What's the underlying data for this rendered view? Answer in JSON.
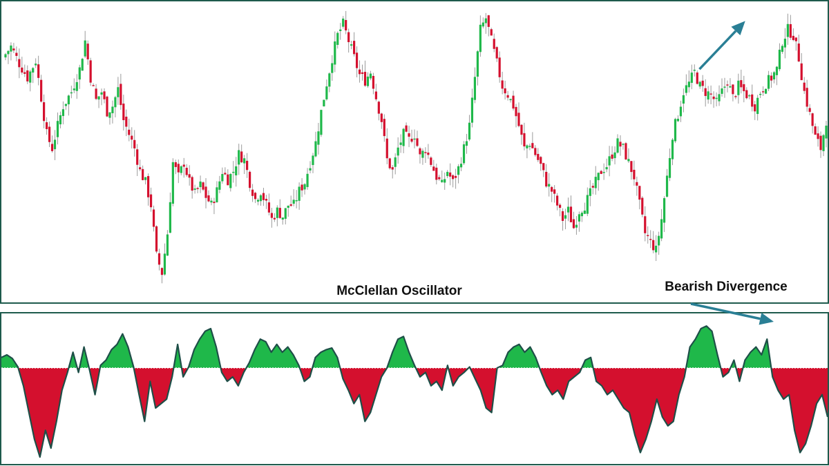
{
  "colors": {
    "bull": "#1fb84a",
    "bear": "#d4102e",
    "frame": "#1e5a4c",
    "arrow": "#2a7f95",
    "oscillator_line": "#1e4f48",
    "wick": "#9a9a9a"
  },
  "chart_data": [
    {
      "type": "candlestick",
      "title": "",
      "xlabel": "",
      "ylabel": "",
      "grid": false,
      "ylim": [
        0,
        100
      ],
      "annotation": {
        "kind": "arrow",
        "direction": "up-right",
        "from": [
          245,
          78
        ],
        "to": [
          272,
          96
        ]
      },
      "close_path": [
        [
          0,
          82
        ],
        [
          3,
          86
        ],
        [
          6,
          80
        ],
        [
          9,
          75
        ],
        [
          12,
          81
        ],
        [
          14,
          68
        ],
        [
          16,
          55
        ],
        [
          18,
          50
        ],
        [
          20,
          58
        ],
        [
          22,
          65
        ],
        [
          25,
          70
        ],
        [
          28,
          78
        ],
        [
          30,
          88
        ],
        [
          32,
          75
        ],
        [
          34,
          67
        ],
        [
          36,
          70
        ],
        [
          38,
          63
        ],
        [
          40,
          65
        ],
        [
          42,
          71
        ],
        [
          44,
          60
        ],
        [
          46,
          55
        ],
        [
          48,
          50
        ],
        [
          50,
          42
        ],
        [
          52,
          38
        ],
        [
          54,
          30
        ],
        [
          56,
          12
        ],
        [
          58,
          6
        ],
        [
          60,
          20
        ],
        [
          62,
          45
        ],
        [
          64,
          40
        ],
        [
          66,
          45
        ],
        [
          68,
          38
        ],
        [
          70,
          34
        ],
        [
          72,
          37
        ],
        [
          74,
          33
        ],
        [
          76,
          30
        ],
        [
          78,
          35
        ],
        [
          80,
          42
        ],
        [
          82,
          39
        ],
        [
          84,
          42
        ],
        [
          86,
          48
        ],
        [
          88,
          46
        ],
        [
          90,
          38
        ],
        [
          92,
          32
        ],
        [
          94,
          35
        ],
        [
          96,
          30
        ],
        [
          98,
          25
        ],
        [
          100,
          28
        ],
        [
          102,
          26
        ],
        [
          104,
          30
        ],
        [
          106,
          30
        ],
        [
          108,
          35
        ],
        [
          110,
          38
        ],
        [
          112,
          45
        ],
        [
          114,
          52
        ],
        [
          116,
          63
        ],
        [
          118,
          73
        ],
        [
          120,
          82
        ],
        [
          122,
          90
        ],
        [
          124,
          94
        ],
        [
          126,
          88
        ],
        [
          128,
          82
        ],
        [
          130,
          76
        ],
        [
          132,
          74
        ],
        [
          134,
          77
        ],
        [
          136,
          68
        ],
        [
          138,
          60
        ],
        [
          140,
          46
        ],
        [
          142,
          42
        ],
        [
          144,
          50
        ],
        [
          146,
          55
        ],
        [
          148,
          53
        ],
        [
          150,
          55
        ],
        [
          152,
          47
        ],
        [
          154,
          50
        ],
        [
          156,
          45
        ],
        [
          158,
          40
        ],
        [
          160,
          37
        ],
        [
          162,
          42
        ],
        [
          164,
          38
        ],
        [
          166,
          43
        ],
        [
          168,
          50
        ],
        [
          170,
          58
        ],
        [
          172,
          75
        ],
        [
          174,
          92
        ],
        [
          176,
          96
        ],
        [
          178,
          88
        ],
        [
          180,
          80
        ],
        [
          182,
          72
        ],
        [
          184,
          69
        ],
        [
          186,
          65
        ],
        [
          188,
          58
        ],
        [
          190,
          50
        ],
        [
          192,
          52
        ],
        [
          194,
          48
        ],
        [
          196,
          44
        ],
        [
          198,
          38
        ],
        [
          200,
          35
        ],
        [
          202,
          30
        ],
        [
          204,
          25
        ],
        [
          206,
          28
        ],
        [
          208,
          22
        ],
        [
          210,
          28
        ],
        [
          212,
          30
        ],
        [
          214,
          34
        ],
        [
          216,
          38
        ],
        [
          218,
          42
        ],
        [
          220,
          44
        ],
        [
          222,
          48
        ],
        [
          224,
          52
        ],
        [
          226,
          50
        ],
        [
          228,
          45
        ],
        [
          230,
          40
        ],
        [
          232,
          30
        ],
        [
          234,
          20
        ],
        [
          236,
          17
        ],
        [
          238,
          14
        ],
        [
          240,
          25
        ],
        [
          242,
          40
        ],
        [
          244,
          55
        ],
        [
          246,
          62
        ],
        [
          248,
          70
        ],
        [
          250,
          73
        ],
        [
          252,
          77
        ],
        [
          254,
          72
        ],
        [
          256,
          70
        ],
        [
          258,
          69
        ],
        [
          260,
          66
        ],
        [
          262,
          70
        ],
        [
          264,
          74
        ],
        [
          266,
          68
        ],
        [
          268,
          72
        ],
        [
          270,
          70
        ],
        [
          272,
          68
        ],
        [
          274,
          65
        ],
        [
          276,
          70
        ],
        [
          278,
          73
        ],
        [
          280,
          75
        ],
        [
          282,
          78
        ],
        [
          284,
          88
        ],
        [
          286,
          92
        ],
        [
          288,
          90
        ],
        [
          290,
          82
        ],
        [
          292,
          70
        ],
        [
          294,
          62
        ],
        [
          296,
          54
        ],
        [
          298,
          50
        ],
        [
          300,
          60
        ]
      ]
    },
    {
      "type": "area",
      "title": "McClellan Oscillator",
      "xlabel": "",
      "ylabel": "",
      "grid": false,
      "baseline": 0,
      "ylim": [
        -100,
        100
      ],
      "annotation": {
        "kind": "arrow",
        "label": "Bearish Divergence",
        "direction": "down-right",
        "from": [
          250,
          92
        ],
        "to": [
          278,
          68
        ]
      },
      "series": [
        {
          "x_values": [
            [
              0,
              20
            ],
            [
              2,
              25
            ],
            [
              4,
              18
            ],
            [
              6,
              2
            ],
            [
              8,
              -20
            ],
            [
              10,
              -50
            ],
            [
              12,
              -80
            ],
            [
              14,
              -100
            ],
            [
              16,
              -70
            ],
            [
              18,
              -90
            ],
            [
              20,
              -60
            ],
            [
              22,
              -25
            ],
            [
              24,
              -5
            ],
            [
              26,
              30
            ],
            [
              28,
              -5
            ],
            [
              30,
              40
            ],
            [
              32,
              -2
            ],
            [
              34,
              -30
            ],
            [
              36,
              5
            ],
            [
              38,
              15
            ],
            [
              40,
              35
            ],
            [
              42,
              45
            ],
            [
              44,
              65
            ],
            [
              46,
              40
            ],
            [
              48,
              2
            ],
            [
              50,
              -30
            ],
            [
              52,
              -60
            ],
            [
              54,
              -15
            ],
            [
              56,
              -45
            ],
            [
              58,
              -40
            ],
            [
              60,
              -35
            ],
            [
              62,
              -10
            ],
            [
              64,
              45
            ],
            [
              66,
              -10
            ],
            [
              68,
              2
            ],
            [
              70,
              35
            ],
            [
              72,
              55
            ],
            [
              74,
              70
            ],
            [
              76,
              75
            ],
            [
              78,
              40
            ],
            [
              80,
              -5
            ],
            [
              82,
              -15
            ],
            [
              84,
              -10
            ],
            [
              86,
              -20
            ],
            [
              88,
              -5
            ],
            [
              90,
              10
            ],
            [
              92,
              35
            ],
            [
              94,
              55
            ],
            [
              96,
              50
            ],
            [
              98,
              30
            ],
            [
              100,
              45
            ],
            [
              102,
              30
            ],
            [
              104,
              40
            ],
            [
              106,
              25
            ],
            [
              108,
              5
            ],
            [
              110,
              -15
            ],
            [
              112,
              -10
            ],
            [
              114,
              20
            ],
            [
              116,
              30
            ],
            [
              118,
              35
            ],
            [
              120,
              38
            ],
            [
              122,
              20
            ],
            [
              124,
              -12
            ],
            [
              126,
              -25
            ],
            [
              128,
              -40
            ],
            [
              130,
              -30
            ],
            [
              132,
              -60
            ],
            [
              134,
              -50
            ],
            [
              136,
              -30
            ],
            [
              138,
              -10
            ],
            [
              140,
              0
            ],
            [
              142,
              30
            ],
            [
              144,
              55
            ],
            [
              146,
              60
            ],
            [
              148,
              30
            ],
            [
              150,
              5
            ],
            [
              152,
              -10
            ],
            [
              154,
              -5
            ],
            [
              156,
              -20
            ],
            [
              158,
              -15
            ],
            [
              160,
              -25
            ],
            [
              162,
              5
            ],
            [
              164,
              -20
            ],
            [
              166,
              -10
            ],
            [
              168,
              -5
            ],
            [
              170,
              2
            ],
            [
              172,
              -12
            ],
            [
              174,
              -25
            ],
            [
              176,
              -45
            ],
            [
              178,
              -50
            ],
            [
              180,
              0
            ],
            [
              182,
              5
            ],
            [
              184,
              30
            ],
            [
              186,
              40
            ],
            [
              188,
              45
            ],
            [
              190,
              30
            ],
            [
              192,
              40
            ],
            [
              194,
              20
            ],
            [
              196,
              -5
            ],
            [
              198,
              -20
            ],
            [
              200,
              -30
            ],
            [
              202,
              -25
            ],
            [
              204,
              -35
            ],
            [
              206,
              -15
            ],
            [
              208,
              -10
            ],
            [
              210,
              -5
            ],
            [
              212,
              15
            ],
            [
              214,
              20
            ],
            [
              216,
              -15
            ],
            [
              218,
              -20
            ],
            [
              220,
              -30
            ],
            [
              222,
              -25
            ],
            [
              224,
              -35
            ],
            [
              226,
              -45
            ],
            [
              228,
              -50
            ],
            [
              230,
              -75
            ],
            [
              232,
              -95
            ],
            [
              234,
              -80
            ],
            [
              236,
              -60
            ],
            [
              238,
              -35
            ],
            [
              240,
              -55
            ],
            [
              242,
              -65
            ],
            [
              244,
              -60
            ],
            [
              246,
              -30
            ],
            [
              248,
              -10
            ],
            [
              250,
              40
            ],
            [
              252,
              55
            ],
            [
              254,
              75
            ],
            [
              256,
              80
            ],
            [
              258,
              70
            ],
            [
              260,
              25
            ],
            [
              262,
              -10
            ],
            [
              264,
              -5
            ],
            [
              266,
              15
            ],
            [
              268,
              -15
            ],
            [
              270,
              15
            ],
            [
              272,
              30
            ],
            [
              274,
              40
            ],
            [
              276,
              25
            ],
            [
              278,
              55
            ],
            [
              280,
              -10
            ],
            [
              282,
              -25
            ],
            [
              284,
              -35
            ],
            [
              286,
              -30
            ],
            [
              288,
              -70
            ],
            [
              290,
              -95
            ],
            [
              292,
              -85
            ],
            [
              294,
              -65
            ],
            [
              296,
              -40
            ],
            [
              298,
              -30
            ],
            [
              300,
              -55
            ]
          ]
        }
      ]
    }
  ]
}
